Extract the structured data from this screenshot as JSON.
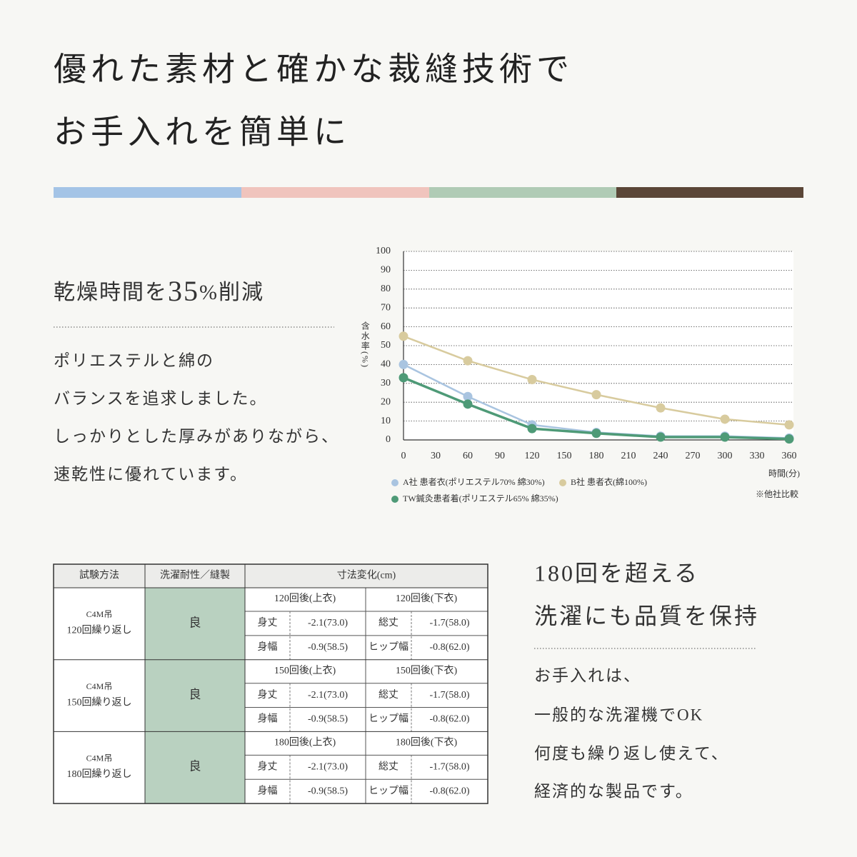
{
  "header": {
    "title_lines": [
      "優れた素材と確かな裁縫技術で",
      "お手入れを簡単に"
    ]
  },
  "section1": {
    "heading_parts": [
      "乾燥時間を",
      "35",
      "%削減"
    ],
    "body_lines": [
      "ポリエステルと綿の",
      "バランスを追求しました。",
      "しっかりとした厚みがありながら、",
      "速乾性に優れています。"
    ]
  },
  "chart_data": {
    "type": "line",
    "y_label": "含水率(%)",
    "x_label": "時間(分)",
    "note": "※他社比較",
    "x": [
      0,
      60,
      120,
      180,
      240,
      300,
      360
    ],
    "xlim": [
      0,
      360
    ],
    "xticks": [
      0,
      30,
      60,
      90,
      120,
      150,
      180,
      210,
      240,
      270,
      300,
      330,
      360
    ],
    "ylim": [
      0,
      100
    ],
    "yticks": [
      0,
      10,
      20,
      30,
      40,
      50,
      60,
      70,
      80,
      90,
      100
    ],
    "grid": true,
    "series": [
      {
        "name": "A社 患者衣(ポリエステル70% 綿30%)",
        "color": "#a9c4e0",
        "values": [
          40,
          23,
          8,
          4,
          2,
          2,
          1
        ]
      },
      {
        "name": "B社 患者衣(綿100%)",
        "color": "#d8cb9e",
        "values": [
          55,
          42,
          32,
          24,
          17,
          11,
          8
        ]
      },
      {
        "name": "TW鍼灸患者着(ポリエステル65% 綿35%)",
        "color": "#4e9a77",
        "values": [
          33,
          19,
          6,
          3.5,
          1.5,
          1.5,
          0.5
        ]
      }
    ]
  },
  "table": {
    "headers": [
      "試験方法",
      "洗濯耐性／縫製",
      "寸法変化(cm)"
    ],
    "groups": [
      {
        "method": [
          "C4M吊",
          "120回繰り返し"
        ],
        "result": "良",
        "upper": "120回後(上衣)",
        "lower": "120回後(下衣)",
        "rows": [
          [
            "身丈",
            "-2.1(73.0)",
            "総丈",
            "-1.7(58.0)"
          ],
          [
            "身幅",
            "-0.9(58.5)",
            "ヒップ幅",
            "-0.8(62.0)"
          ]
        ]
      },
      {
        "method": [
          "C4M吊",
          "150回繰り返し"
        ],
        "result": "良",
        "upper": "150回後(上衣)",
        "lower": "150回後(下衣)",
        "rows": [
          [
            "身丈",
            "-2.1(73.0)",
            "総丈",
            "-1.7(58.0)"
          ],
          [
            "身幅",
            "-0.9(58.5)",
            "ヒップ幅",
            "-0.8(62.0)"
          ]
        ]
      },
      {
        "method": [
          "C4M吊",
          "180回繰り返し"
        ],
        "result": "良",
        "upper": "180回後(上衣)",
        "lower": "180回後(下衣)",
        "rows": [
          [
            "身丈",
            "-2.1(73.0)",
            "総丈",
            "-1.7(58.0)"
          ],
          [
            "身幅",
            "-0.9(58.5)",
            "ヒップ幅",
            "-0.8(62.0)"
          ]
        ]
      }
    ]
  },
  "section2": {
    "heading_lines": [
      "180回を超える",
      "洗濯にも品質を保持"
    ],
    "body_lines": [
      "お手入れは、",
      "一般的な洗濯機でOK",
      "何度も繰り返し使えて、",
      "経済的な製品です。"
    ]
  }
}
